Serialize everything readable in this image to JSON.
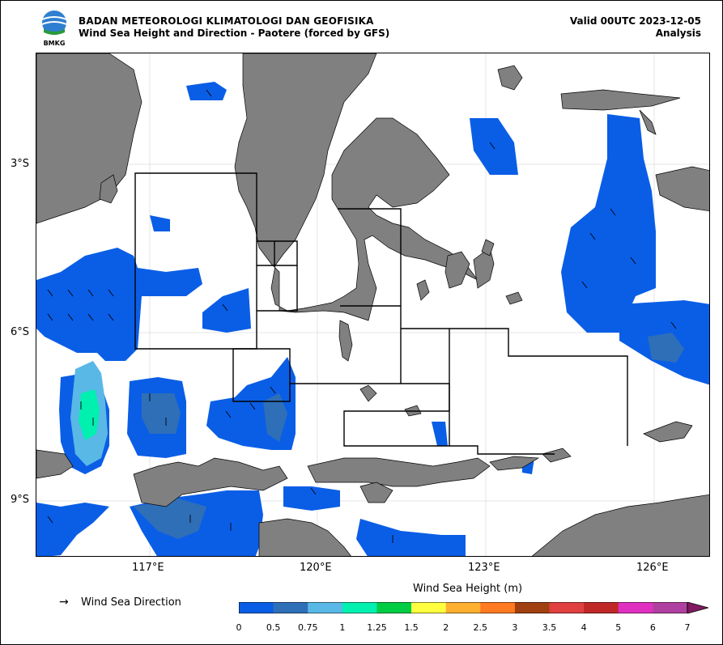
{
  "header": {
    "org": "BADAN METEOROLOGI KLIMATOLOGI DAN GEOFISIKA",
    "subtitle": "Wind Sea Height and Direction - Paotere (forced by GFS)",
    "valid": "Valid 00UTC 2023-12-05",
    "analysis": "Analysis",
    "logo_text": "BMKG"
  },
  "axes": {
    "lat_labels": [
      "3°S",
      "6°S",
      "9°S"
    ],
    "lon_labels": [
      "117°E",
      "120°E",
      "123°E",
      "126°E"
    ]
  },
  "legend": {
    "direction_label": "Wind Sea Direction",
    "arrow_glyph": "→"
  },
  "colorbar": {
    "title": "Wind Sea Height (m)",
    "ticks": [
      "0",
      "0.5",
      "0.75",
      "1",
      "1.25",
      "1.5",
      "2",
      "2.5",
      "3",
      "3.5",
      "4",
      "5",
      "6",
      "7"
    ],
    "colors": [
      "#0a5ee6",
      "#2f6fb8",
      "#5ab8e6",
      "#00f0b0",
      "#00cc44",
      "#ffff40",
      "#ffb030",
      "#ff7a20",
      "#a04010",
      "#e04040",
      "#c02828",
      "#e030c0",
      "#b040a0"
    ]
  },
  "colors": {
    "land": "#808080",
    "wave_low": "#0a5ee6",
    "wave_mid": "#2f6fb8",
    "wave_high": "#5ab8e6",
    "wave_peak": "#00f0b0"
  }
}
